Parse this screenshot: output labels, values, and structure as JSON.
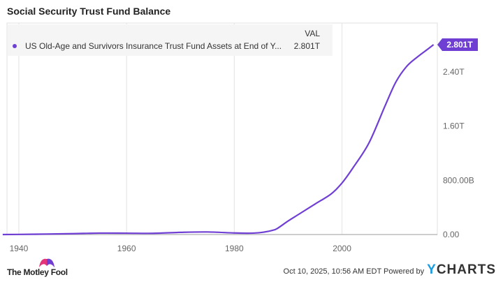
{
  "chart_data": {
    "type": "line",
    "title": "Social Security Trust Fund Balance",
    "legend": {
      "header": "VAL",
      "placement": "top-left"
    },
    "series": [
      {
        "name": "US Old-Age and Survivors Insurance Trust Fund Assets at End of Y...",
        "last_value_label": "2.801T",
        "color": "#6f3fd4",
        "x": [
          1937,
          1940,
          1945,
          1950,
          1955,
          1960,
          1965,
          1970,
          1975,
          1980,
          1983,
          1985,
          1987,
          1988,
          1990,
          1992,
          1995,
          1998,
          2000,
          2002,
          2005,
          2008,
          2010,
          2012,
          2014,
          2016,
          2017
        ],
        "y": [
          0.0,
          0.002,
          0.007,
          0.013,
          0.021,
          0.02,
          0.018,
          0.032,
          0.038,
          0.023,
          0.02,
          0.03,
          0.06,
          0.09,
          0.2,
          0.3,
          0.45,
          0.6,
          0.76,
          0.98,
          1.35,
          1.9,
          2.25,
          2.48,
          2.62,
          2.74,
          2.801
        ]
      }
    ],
    "x_ticks": [
      "1940",
      "1960",
      "1980",
      "2000"
    ],
    "y_ticks": [
      "0.00",
      "800.00B",
      "1.60T",
      "2.40T"
    ],
    "y_tick_values": [
      0,
      0.8,
      1.6,
      2.4
    ],
    "xlim": [
      1937.8,
      2017.7
    ],
    "ylim": [
      0,
      3.1
    ],
    "grid": true,
    "y_unit": "T"
  },
  "footer": {
    "date": "Oct 10, 2025, 10:56 AM EDT",
    "powered_by": "Powered by",
    "brand_y": "Y",
    "brand_rest": "CHARTS",
    "logo_text": "The Motley Fool"
  }
}
